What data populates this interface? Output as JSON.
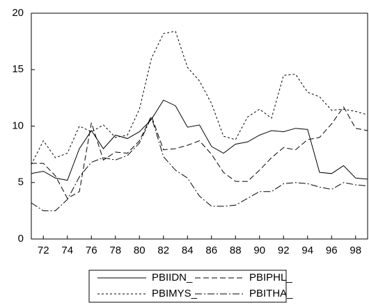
{
  "chart_data": {
    "type": "line",
    "x": [
      71,
      72,
      73,
      74,
      75,
      76,
      77,
      78,
      79,
      80,
      81,
      82,
      83,
      84,
      85,
      86,
      87,
      88,
      89,
      90,
      91,
      92,
      93,
      94,
      95,
      96,
      97,
      98,
      99
    ],
    "xlim": [
      71,
      99
    ],
    "xticks": [
      72,
      74,
      76,
      78,
      80,
      82,
      84,
      86,
      88,
      90,
      92,
      94,
      96,
      98
    ],
    "ylim": [
      0,
      20
    ],
    "yticks": [
      0,
      5,
      10,
      15,
      20
    ],
    "series": [
      {
        "name": "PBIIDN_",
        "color": "#000000",
        "dash": "none",
        "values": [
          5.8,
          6.0,
          5.4,
          5.2,
          8.0,
          9.6,
          8.0,
          9.2,
          8.9,
          9.5,
          10.6,
          12.3,
          11.8,
          9.9,
          10.1,
          8.2,
          7.6,
          8.4,
          8.6,
          9.2,
          9.6,
          9.5,
          9.8,
          9.7,
          5.9,
          5.8,
          6.5,
          5.4,
          5.3
        ]
      },
      {
        "name": "PBIPHL_",
        "color": "#000000",
        "dash": "8,4",
        "values": [
          6.7,
          6.7,
          5.6,
          3.6,
          4.2,
          10.3,
          7.0,
          7.7,
          7.6,
          8.7,
          10.9,
          7.9,
          8.0,
          8.3,
          8.7,
          7.5,
          5.9,
          5.1,
          5.1,
          6.1,
          7.2,
          8.1,
          7.9,
          8.8,
          9.0,
          10.2,
          11.7,
          9.8,
          9.6
        ]
      },
      {
        "name": "PBIMYS_",
        "color": "#000000",
        "dash": "3,3",
        "values": [
          6.6,
          8.7,
          7.2,
          7.6,
          10.0,
          9.5,
          10.1,
          9.0,
          9.2,
          11.5,
          16.0,
          18.2,
          18.4,
          15.2,
          14.0,
          12.0,
          9.1,
          8.8,
          10.8,
          11.5,
          10.7,
          14.5,
          14.6,
          13.0,
          12.6,
          11.4,
          11.5,
          11.3,
          11.0
        ]
      },
      {
        "name": "PBITHA_",
        "color": "#000000",
        "dash": "10,3,2,3",
        "values": [
          3.2,
          2.5,
          2.5,
          3.5,
          5.5,
          6.8,
          7.2,
          7.0,
          7.4,
          8.5,
          10.8,
          7.3,
          6.1,
          5.4,
          3.8,
          2.9,
          2.9,
          3.0,
          3.6,
          4.2,
          4.2,
          4.9,
          5.0,
          4.9,
          4.6,
          4.4,
          5.0,
          4.8,
          4.7
        ]
      }
    ]
  }
}
